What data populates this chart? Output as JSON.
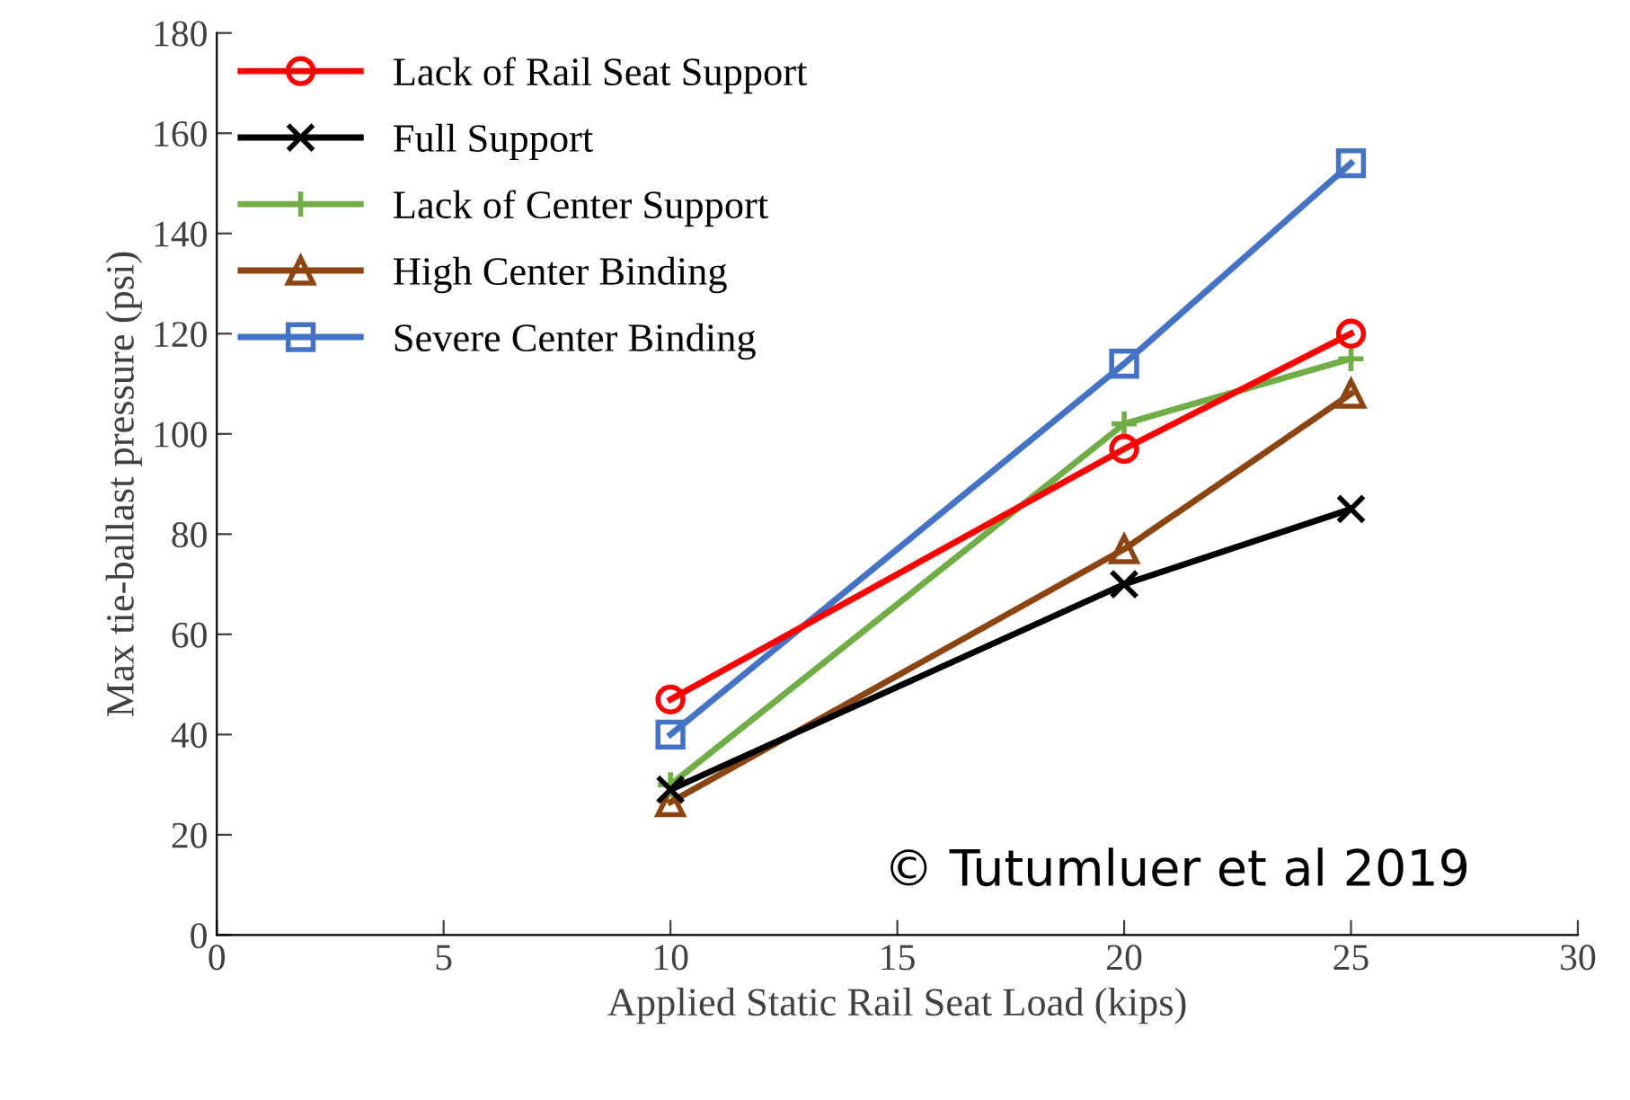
{
  "chart_data": {
    "type": "line",
    "xlabel": "Applied Static Rail Seat Load (kips)",
    "ylabel": "Max tie-ballast pressure (psi)",
    "x": [
      10,
      20,
      25
    ],
    "xlim": [
      0,
      30
    ],
    "xticks": [
      0,
      5,
      10,
      15,
      20,
      25,
      30
    ],
    "ylim": [
      0,
      180
    ],
    "yticks": [
      0,
      20,
      40,
      60,
      80,
      100,
      120,
      140,
      160,
      180
    ],
    "grid": false,
    "legend": "top left",
    "series": [
      {
        "name": "Lack of Rail Seat Support",
        "color": "#ff0000",
        "marker": "circle",
        "values": [
          47,
          97,
          120
        ]
      },
      {
        "name": "Full Support",
        "color": "#000000",
        "marker": "cross",
        "values": [
          29,
          70,
          85
        ]
      },
      {
        "name": "Lack of Center Support",
        "color": "#70ad47",
        "marker": "plus",
        "values": [
          30,
          102,
          115
        ]
      },
      {
        "name": "High Center Binding",
        "color": "#8b4513",
        "marker": "triangle",
        "values": [
          26.5,
          77,
          108
        ]
      },
      {
        "name": "Severe Center Binding",
        "color": "#4472c4",
        "marker": "square",
        "values": [
          40,
          114,
          154
        ]
      }
    ],
    "annotations": [
      "© Tutumluer et al 2019"
    ]
  }
}
